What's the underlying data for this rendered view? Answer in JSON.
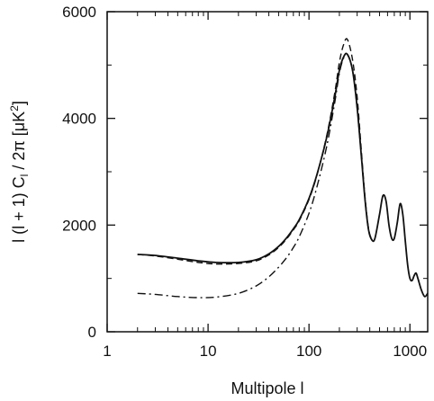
{
  "chart_data": {
    "type": "line",
    "xlabel": "Multipole l",
    "ylabel": "l (l + 1) C",
    "ylabel_sub": "l",
    "ylabel_tail": " / 2π  [μK",
    "ylabel_sup": "2",
    "ylabel_end": "]",
    "xscale": "log",
    "xlim": [
      1,
      1500
    ],
    "ylim": [
      0,
      6000
    ],
    "xticks": [
      1,
      10,
      100,
      1000
    ],
    "xtick_labels": [
      "1",
      "10",
      "100",
      "1000"
    ],
    "yticks": [
      0,
      2000,
      4000,
      6000
    ],
    "ytick_labels": [
      "0",
      "2000",
      "4000",
      "6000"
    ],
    "grid": false,
    "series": [
      {
        "style": "solid",
        "x": [
          2,
          3,
          5,
          8,
          12,
          20,
          30,
          40,
          50,
          60,
          70,
          80,
          100,
          120,
          150,
          180,
          200,
          220,
          240,
          270,
          300,
          330,
          360,
          390,
          420,
          450,
          500,
          540,
          580,
          620,
          660,
          700,
          750,
          800,
          850,
          900,
          950,
          1000,
          1050,
          1100,
          1150,
          1200,
          1300,
          1400,
          1500
        ],
        "y": [
          1450,
          1430,
          1380,
          1330,
          1300,
          1300,
          1350,
          1460,
          1600,
          1760,
          1930,
          2100,
          2500,
          2950,
          3650,
          4400,
          4900,
          5150,
          5200,
          4900,
          4200,
          3300,
          2450,
          1900,
          1720,
          1750,
          2200,
          2550,
          2450,
          2000,
          1750,
          1750,
          2050,
          2400,
          2200,
          1700,
          1250,
          1000,
          960,
          1050,
          1100,
          1000,
          780,
          660,
          720
        ]
      },
      {
        "style": "dashed",
        "x": [
          2,
          3,
          5,
          8,
          12,
          20,
          30,
          40,
          50,
          60,
          70,
          80,
          100,
          120,
          150,
          180,
          200,
          220,
          240,
          270,
          300,
          330,
          360,
          390,
          420
        ],
        "y": [
          1450,
          1420,
          1360,
          1300,
          1270,
          1280,
          1330,
          1440,
          1580,
          1740,
          1910,
          2080,
          2480,
          2940,
          3680,
          4480,
          5050,
          5380,
          5480,
          5100,
          4400,
          3400,
          2500,
          1920,
          1720
        ]
      },
      {
        "style": "dashdot",
        "x": [
          2,
          3,
          5,
          8,
          12,
          20,
          30,
          40,
          50,
          60,
          70,
          80,
          100,
          120,
          150,
          180,
          200,
          220,
          240,
          270,
          300,
          330,
          360,
          390,
          420
        ],
        "y": [
          720,
          700,
          660,
          640,
          650,
          720,
          860,
          1030,
          1210,
          1390,
          1580,
          1780,
          2220,
          2720,
          3480,
          4300,
          4850,
          5130,
          5200,
          4900,
          4200,
          3300,
          2450,
          1900,
          1720
        ]
      }
    ]
  }
}
